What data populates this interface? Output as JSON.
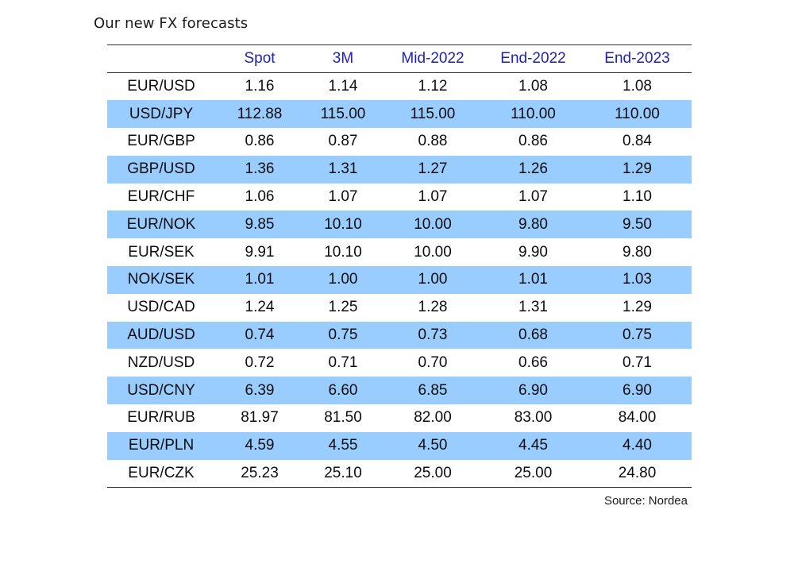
{
  "title": "Our new FX forecasts",
  "colors": {
    "header_text": "#1f1fb8",
    "shaded_row": "#99ccff",
    "rule": "#333333"
  },
  "table": {
    "headers": [
      "",
      "Spot",
      "3M",
      "Mid-2022",
      "End-2022",
      "End-2023"
    ],
    "rows": [
      [
        "EUR/USD",
        "1.16",
        "1.14",
        "1.12",
        "1.08",
        "1.08"
      ],
      [
        "USD/JPY",
        "112.88",
        "115.00",
        "115.00",
        "110.00",
        "110.00"
      ],
      [
        "EUR/GBP",
        "0.86",
        "0.87",
        "0.88",
        "0.86",
        "0.84"
      ],
      [
        "GBP/USD",
        "1.36",
        "1.31",
        "1.27",
        "1.26",
        "1.29"
      ],
      [
        "EUR/CHF",
        "1.06",
        "1.07",
        "1.07",
        "1.07",
        "1.10"
      ],
      [
        "EUR/NOK",
        "9.85",
        "10.10",
        "10.00",
        "9.80",
        "9.50"
      ],
      [
        "EUR/SEK",
        "9.91",
        "10.10",
        "10.00",
        "9.90",
        "9.80"
      ],
      [
        "NOK/SEK",
        "1.01",
        "1.00",
        "1.00",
        "1.01",
        "1.03"
      ],
      [
        "USD/CAD",
        "1.24",
        "1.25",
        "1.28",
        "1.31",
        "1.29"
      ],
      [
        "AUD/USD",
        "0.74",
        "0.75",
        "0.73",
        "0.68",
        "0.75"
      ],
      [
        "NZD/USD",
        "0.72",
        "0.71",
        "0.70",
        "0.66",
        "0.71"
      ],
      [
        "USD/CNY",
        "6.39",
        "6.60",
        "6.85",
        "6.90",
        "6.90"
      ],
      [
        "EUR/RUB",
        "81.97",
        "81.50",
        "82.00",
        "83.00",
        "84.00"
      ],
      [
        "EUR/PLN",
        "4.59",
        "4.55",
        "4.50",
        "4.45",
        "4.40"
      ],
      [
        "EUR/CZK",
        "25.23",
        "25.10",
        "25.00",
        "25.00",
        "24.80"
      ]
    ]
  },
  "source": "Source: Nordea"
}
